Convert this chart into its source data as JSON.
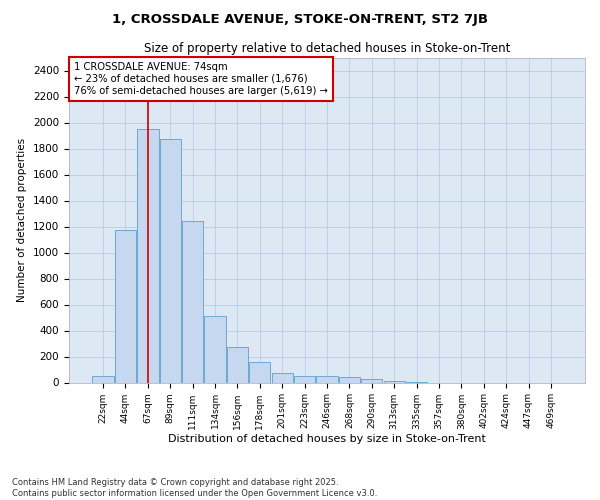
{
  "title_line1": "1, CROSSDALE AVENUE, STOKE-ON-TRENT, ST2 7JB",
  "title_line2": "Size of property relative to detached houses in Stoke-on-Trent",
  "xlabel": "Distribution of detached houses by size in Stoke-on-Trent",
  "ylabel": "Number of detached properties",
  "categories": [
    "22sqm",
    "44sqm",
    "67sqm",
    "89sqm",
    "111sqm",
    "134sqm",
    "156sqm",
    "178sqm",
    "201sqm",
    "223sqm",
    "246sqm",
    "268sqm",
    "290sqm",
    "313sqm",
    "335sqm",
    "357sqm",
    "380sqm",
    "402sqm",
    "424sqm",
    "447sqm",
    "469sqm"
  ],
  "values": [
    50,
    1170,
    1950,
    1870,
    1240,
    510,
    270,
    160,
    75,
    50,
    50,
    40,
    25,
    10,
    3,
    0,
    0,
    0,
    0,
    0,
    0
  ],
  "bar_color": "#c5d8f0",
  "bar_edge_color": "#6aaad4",
  "vline_x_idx": 2,
  "vline_color": "#cc0000",
  "annotation_text": "1 CROSSDALE AVENUE: 74sqm\n← 23% of detached houses are smaller (1,676)\n76% of semi-detached houses are larger (5,619) →",
  "annotation_box_color": "#ffffff",
  "annotation_box_edge_color": "#cc0000",
  "ylim": [
    0,
    2500
  ],
  "yticks": [
    0,
    200,
    400,
    600,
    800,
    1000,
    1200,
    1400,
    1600,
    1800,
    2000,
    2200,
    2400
  ],
  "plot_bg_color": "#dde8f5",
  "fig_bg_color": "#ffffff",
  "grid_color": "#b8cce4",
  "footer_line1": "Contains HM Land Registry data © Crown copyright and database right 2025.",
  "footer_line2": "Contains public sector information licensed under the Open Government Licence v3.0."
}
